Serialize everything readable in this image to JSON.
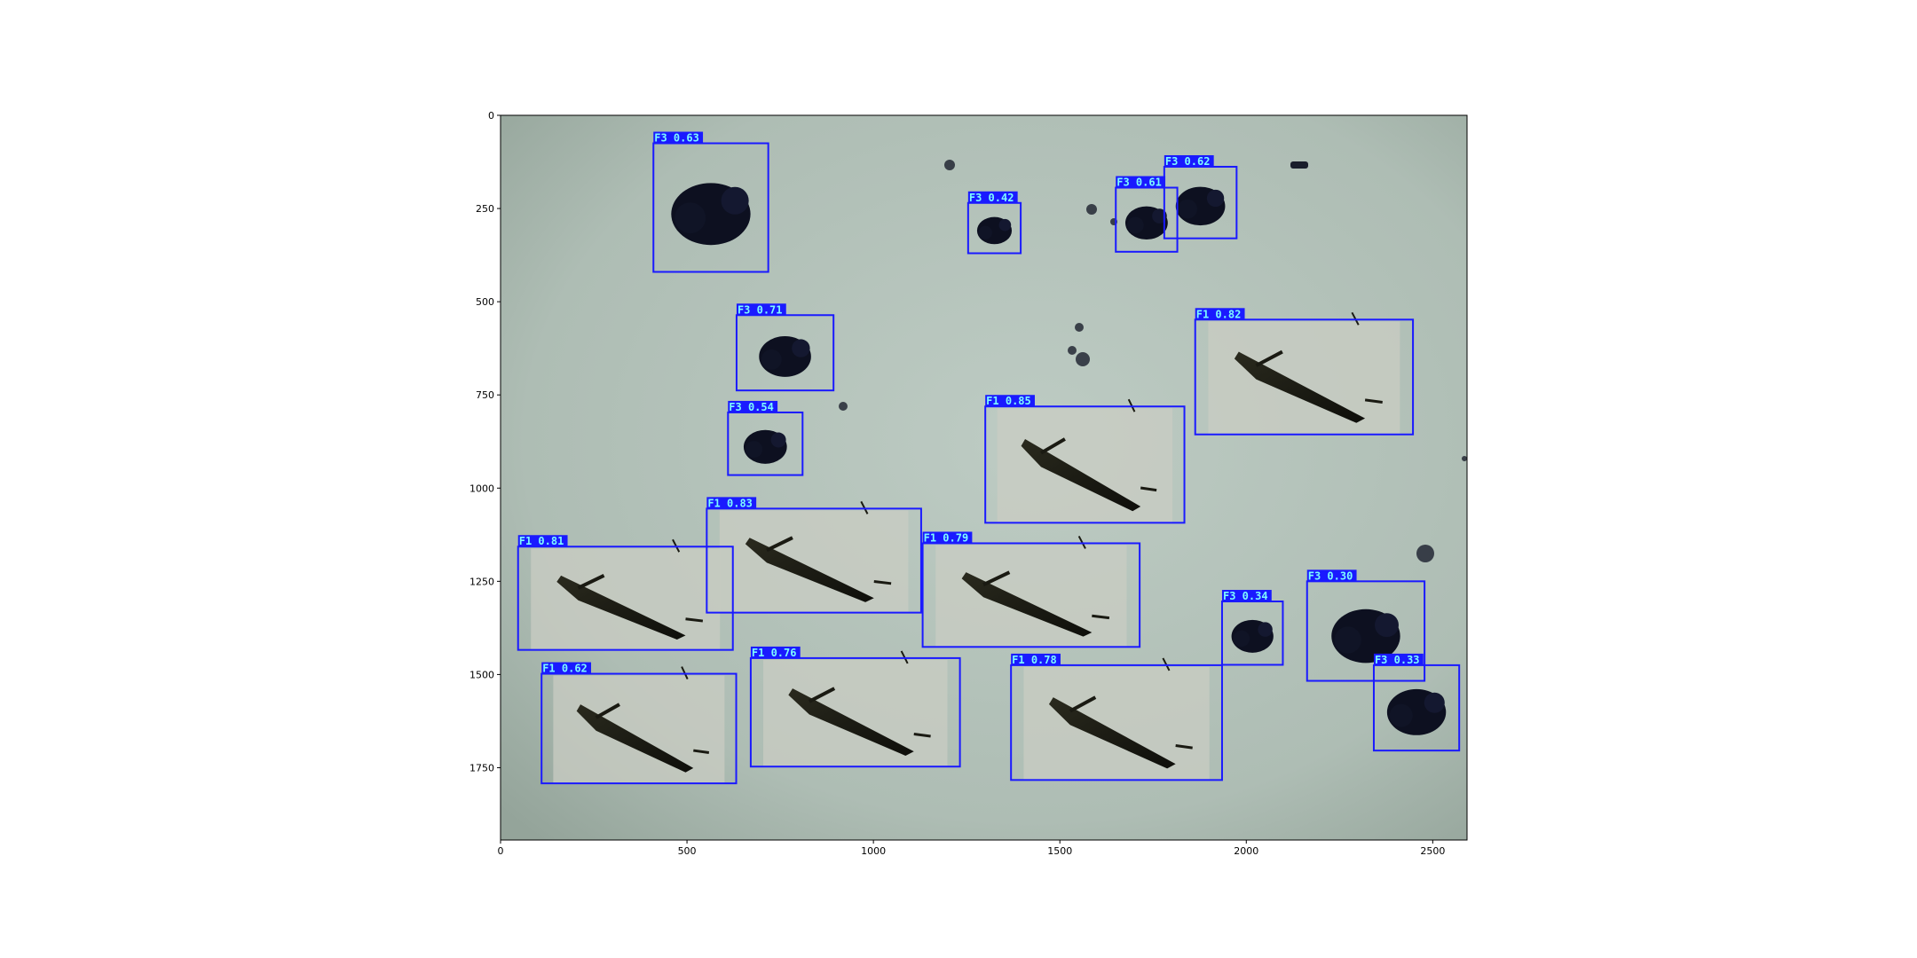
{
  "chart_data": {
    "type": "scatter",
    "xlim": [
      0,
      2592
    ],
    "ylim": [
      1944,
      0
    ],
    "xticks": [
      0,
      500,
      1000,
      1500,
      2000,
      2500
    ],
    "yticks": [
      0,
      250,
      500,
      750,
      1000,
      1250,
      1500,
      1750
    ],
    "grid": false,
    "colors": {
      "box": "#1a1aff",
      "label_bg": "#1a1aff",
      "label_text": "#7df9ff",
      "background": "#b6c4bd"
    },
    "detections": [
      {
        "label": "F3 0.63",
        "x0": 410,
        "y0": 75,
        "x1": 718,
        "y1": 420
      },
      {
        "label": "F3 0.42",
        "x0": 1254,
        "y0": 235,
        "x1": 1395,
        "y1": 370
      },
      {
        "label": "F3 0.61",
        "x0": 1650,
        "y0": 194,
        "x1": 1815,
        "y1": 366
      },
      {
        "label": "F3 0.62",
        "x0": 1780,
        "y0": 138,
        "x1": 1974,
        "y1": 330
      },
      {
        "label": "F3 0.71",
        "x0": 633,
        "y0": 536,
        "x1": 893,
        "y1": 738
      },
      {
        "label": "F1 0.82",
        "x0": 1863,
        "y0": 548,
        "x1": 2447,
        "y1": 856
      },
      {
        "label": "F3 0.54",
        "x0": 610,
        "y0": 797,
        "x1": 810,
        "y1": 965
      },
      {
        "label": "F1 0.85",
        "x0": 1300,
        "y0": 781,
        "x1": 1834,
        "y1": 1093
      },
      {
        "label": "F1 0.83",
        "x0": 553,
        "y0": 1055,
        "x1": 1128,
        "y1": 1334
      },
      {
        "label": "F1 0.81",
        "x0": 47,
        "y0": 1157,
        "x1": 623,
        "y1": 1434
      },
      {
        "label": "F1 0.79",
        "x0": 1132,
        "y0": 1148,
        "x1": 1714,
        "y1": 1426
      },
      {
        "label": "F3 0.34",
        "x0": 1935,
        "y0": 1304,
        "x1": 2098,
        "y1": 1474
      },
      {
        "label": "F3 0.30",
        "x0": 2163,
        "y0": 1250,
        "x1": 2478,
        "y1": 1517
      },
      {
        "label": "F1 0.62",
        "x0": 110,
        "y0": 1498,
        "x1": 632,
        "y1": 1792
      },
      {
        "label": "F1 0.76",
        "x0": 671,
        "y0": 1456,
        "x1": 1232,
        "y1": 1747
      },
      {
        "label": "F1 0.78",
        "x0": 1369,
        "y0": 1475,
        "x1": 1935,
        "y1": 1783
      },
      {
        "label": "F3 0.33",
        "x0": 2342,
        "y0": 1475,
        "x1": 2571,
        "y1": 1704
      }
    ]
  }
}
